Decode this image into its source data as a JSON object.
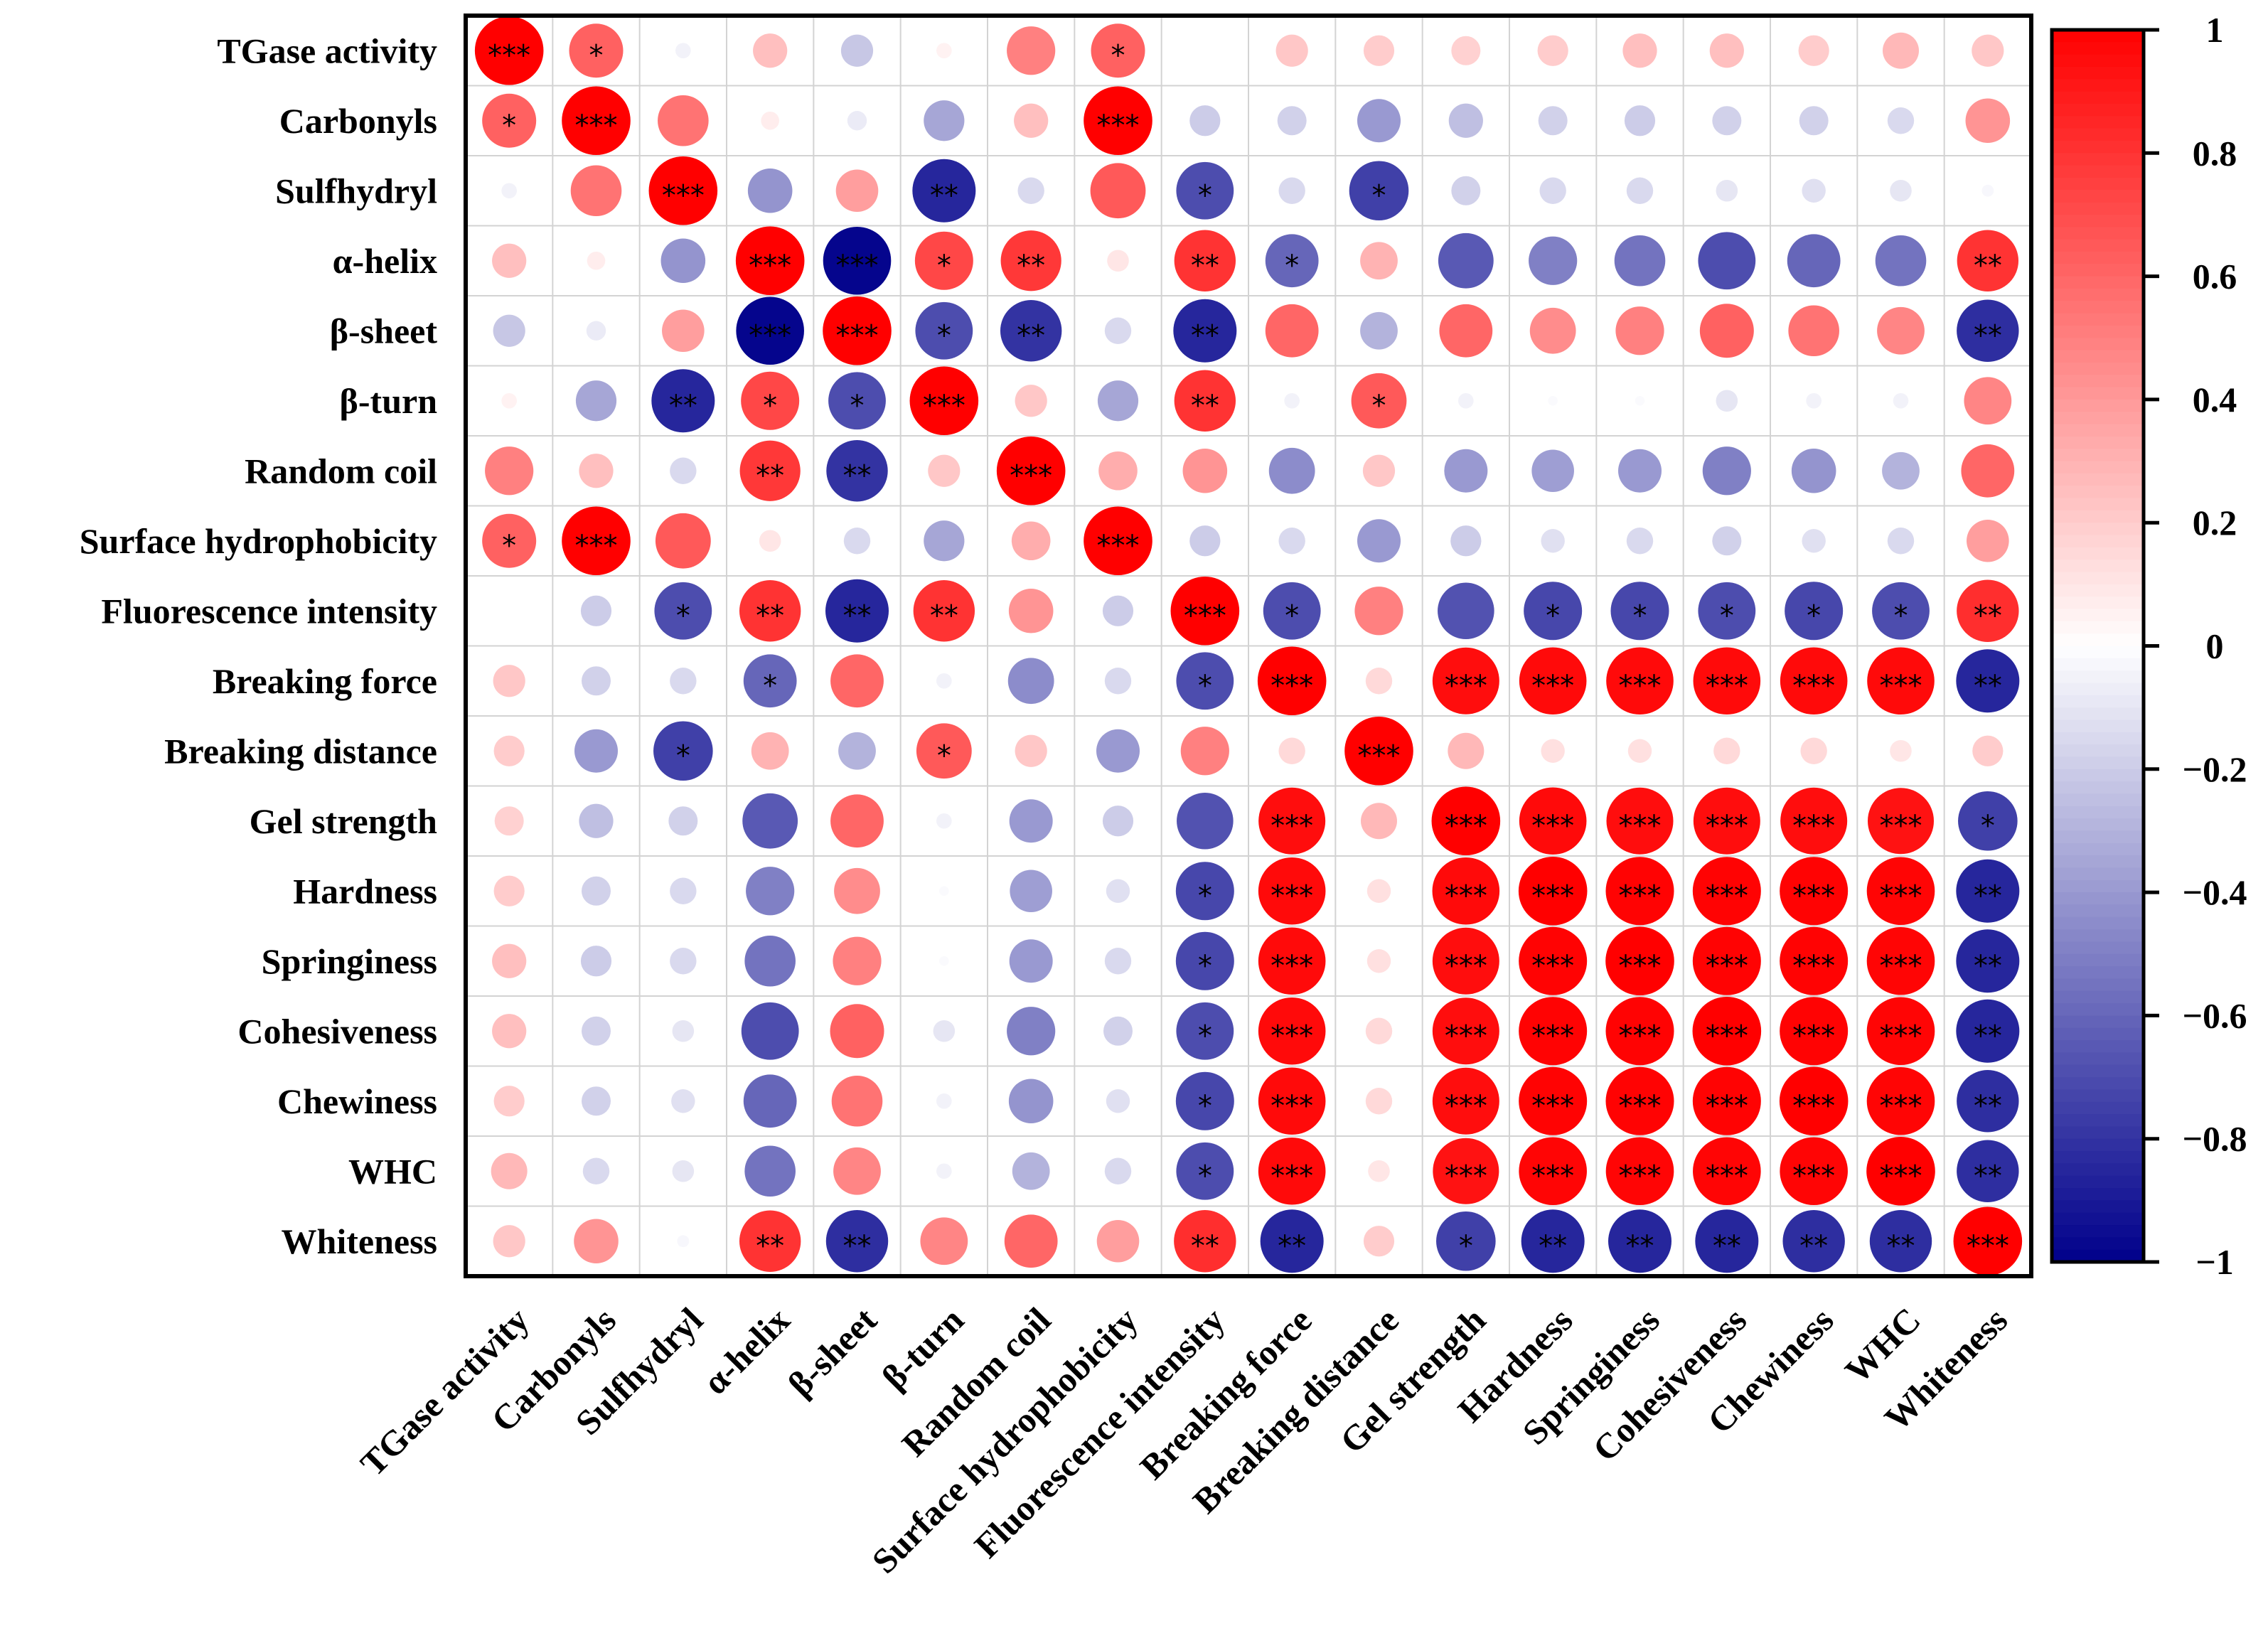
{
  "chart_data": {
    "type": "heatmap",
    "subtype": "correlation-circle-matrix",
    "title": "",
    "variables": [
      "TGase activity",
      "Carbonyls",
      "Sulfhydryl",
      "α-helix",
      "β-sheet",
      "β-turn",
      "Random coil",
      "Surface hydrophobicity",
      "Fluorescence intensity",
      "Breaking force",
      "Breaking distance",
      "Gel strength",
      "Hardness",
      "Springiness",
      "Cohesiveness",
      "Chewiness",
      "WHC",
      "Whiteness"
    ],
    "matrix": [
      [
        1.0,
        0.62,
        -0.05,
        0.25,
        -0.22,
        0.05,
        0.5,
        0.62,
        0.0,
        0.22,
        0.2,
        0.18,
        0.2,
        0.25,
        0.25,
        0.2,
        0.28,
        0.22
      ],
      [
        0.62,
        1.0,
        0.55,
        0.07,
        -0.08,
        -0.35,
        0.25,
        1.0,
        -0.2,
        -0.18,
        -0.4,
        -0.25,
        -0.18,
        -0.2,
        -0.18,
        -0.18,
        -0.15,
        0.42
      ],
      [
        -0.05,
        0.55,
        1.0,
        -0.42,
        0.38,
        -0.85,
        -0.15,
        0.65,
        -0.7,
        -0.15,
        -0.75,
        -0.18,
        -0.15,
        -0.15,
        -0.1,
        -0.12,
        -0.1,
        -0.03
      ],
      [
        0.25,
        0.07,
        -0.42,
        1.0,
        -0.98,
        0.72,
        0.78,
        0.1,
        0.8,
        -0.6,
        0.3,
        -0.65,
        -0.5,
        -0.55,
        -0.7,
        -0.6,
        -0.55,
        0.8
      ],
      [
        -0.22,
        -0.08,
        0.38,
        -0.98,
        1.0,
        -0.7,
        -0.8,
        -0.15,
        -0.85,
        0.6,
        -0.3,
        0.6,
        0.45,
        0.5,
        0.62,
        0.55,
        0.48,
        -0.82
      ],
      [
        0.05,
        -0.35,
        -0.85,
        0.72,
        -0.7,
        1.0,
        0.22,
        -0.35,
        0.8,
        -0.05,
        0.65,
        -0.05,
        -0.02,
        -0.02,
        -0.1,
        -0.05,
        -0.05,
        0.48
      ],
      [
        0.5,
        0.25,
        -0.15,
        0.78,
        -0.8,
        0.22,
        1.0,
        0.32,
        0.42,
        -0.45,
        0.22,
        -0.4,
        -0.38,
        -0.4,
        -0.5,
        -0.42,
        -0.3,
        0.6
      ],
      [
        0.62,
        1.0,
        0.65,
        0.1,
        -0.15,
        -0.35,
        0.32,
        1.0,
        -0.2,
        -0.15,
        -0.4,
        -0.2,
        -0.12,
        -0.15,
        -0.18,
        -0.12,
        -0.15,
        0.38
      ],
      [
        0.0,
        -0.2,
        -0.7,
        0.8,
        -0.85,
        0.8,
        0.42,
        -0.2,
        1.0,
        -0.7,
        0.5,
        -0.68,
        -0.72,
        -0.72,
        -0.7,
        -0.72,
        -0.7,
        0.82
      ],
      [
        0.22,
        -0.18,
        -0.15,
        -0.6,
        0.6,
        -0.05,
        -0.45,
        -0.15,
        -0.7,
        1.0,
        0.15,
        0.95,
        0.96,
        0.96,
        0.96,
        0.96,
        0.96,
        -0.85
      ],
      [
        0.2,
        -0.4,
        -0.75,
        0.3,
        -0.3,
        0.65,
        0.22,
        -0.4,
        0.5,
        0.15,
        1.0,
        0.28,
        0.12,
        0.12,
        0.15,
        0.15,
        0.1,
        0.2
      ],
      [
        0.18,
        -0.25,
        -0.18,
        -0.65,
        0.6,
        -0.05,
        -0.4,
        -0.2,
        -0.68,
        0.95,
        0.28,
        1.0,
        0.96,
        0.95,
        0.95,
        0.95,
        0.93,
        -0.75
      ],
      [
        0.2,
        -0.18,
        -0.15,
        -0.5,
        0.45,
        -0.02,
        -0.38,
        -0.12,
        -0.72,
        0.96,
        0.12,
        0.96,
        1.0,
        0.99,
        0.99,
        0.99,
        0.98,
        -0.85
      ],
      [
        0.25,
        -0.2,
        -0.15,
        -0.55,
        0.5,
        -0.02,
        -0.4,
        -0.15,
        -0.72,
        0.96,
        0.12,
        0.95,
        0.99,
        1.0,
        0.99,
        0.99,
        0.98,
        -0.85
      ],
      [
        0.25,
        -0.18,
        -0.1,
        -0.7,
        0.62,
        -0.1,
        -0.5,
        -0.18,
        -0.7,
        0.96,
        0.15,
        0.95,
        0.99,
        0.99,
        1.0,
        0.99,
        0.98,
        -0.85
      ],
      [
        0.2,
        -0.18,
        -0.12,
        -0.6,
        0.55,
        -0.05,
        -0.42,
        -0.12,
        -0.72,
        0.96,
        0.15,
        0.95,
        0.99,
        0.99,
        0.99,
        1.0,
        0.98,
        -0.82
      ],
      [
        0.28,
        -0.15,
        -0.1,
        -0.55,
        0.48,
        -0.05,
        -0.3,
        -0.15,
        -0.7,
        0.96,
        0.1,
        0.93,
        0.98,
        0.98,
        0.98,
        0.98,
        1.0,
        -0.82
      ],
      [
        0.22,
        0.42,
        -0.03,
        0.8,
        -0.82,
        0.48,
        0.6,
        0.38,
        0.82,
        -0.85,
        0.2,
        -0.75,
        -0.85,
        -0.85,
        -0.85,
        -0.82,
        -0.82,
        1.0
      ]
    ],
    "significance": [
      [
        "***",
        "*",
        "",
        "",
        "",
        "",
        "",
        "*",
        "",
        "",
        "",
        "",
        "",
        "",
        "",
        "",
        "",
        ""
      ],
      [
        "*",
        "***",
        "",
        "",
        "",
        "",
        "",
        "***",
        "",
        "",
        "",
        "",
        "",
        "",
        "",
        "",
        "",
        ""
      ],
      [
        "",
        "",
        "***",
        "",
        "",
        "**",
        "",
        "",
        "*",
        "",
        "*",
        "",
        "",
        "",
        "",
        "",
        "",
        ""
      ],
      [
        "",
        "",
        "",
        "***",
        "***",
        "*",
        "**",
        "",
        "**",
        "*",
        "",
        "",
        "",
        "",
        "",
        "",
        "",
        "**"
      ],
      [
        "",
        "",
        "",
        "***",
        "***",
        "*",
        "**",
        "",
        "**",
        "",
        "",
        "",
        "",
        "",
        "",
        "",
        "",
        "**"
      ],
      [
        "",
        "",
        "**",
        "*",
        "*",
        "***",
        "",
        "",
        "**",
        "",
        "*",
        "",
        "",
        "",
        "",
        "",
        "",
        ""
      ],
      [
        "",
        "",
        "",
        "**",
        "**",
        "",
        "***",
        "",
        "",
        "",
        "",
        "",
        "",
        "",
        "",
        "",
        "",
        ""
      ],
      [
        "*",
        "***",
        "",
        "",
        "",
        "",
        "",
        "***",
        "",
        "",
        "",
        "",
        "",
        "",
        "",
        "",
        "",
        ""
      ],
      [
        "",
        "",
        "*",
        "**",
        "**",
        "**",
        "",
        "",
        "***",
        "*",
        "",
        "",
        "*",
        "*",
        "*",
        "*",
        "*",
        "**"
      ],
      [
        "",
        "",
        "",
        "*",
        "",
        "",
        "",
        "",
        "*",
        "***",
        "",
        "***",
        "***",
        "***",
        "***",
        "***",
        "***",
        "**"
      ],
      [
        "",
        "",
        "*",
        "",
        "",
        "*",
        "",
        "",
        "",
        "",
        "***",
        "",
        "",
        "",
        "",
        "",
        "",
        ""
      ],
      [
        "",
        "",
        "",
        "",
        "",
        "",
        "",
        "",
        "",
        "***",
        "",
        "***",
        "***",
        "***",
        "***",
        "***",
        "***",
        "*"
      ],
      [
        "",
        "",
        "",
        "",
        "",
        "",
        "",
        "",
        "*",
        "***",
        "",
        "***",
        "***",
        "***",
        "***",
        "***",
        "***",
        "**"
      ],
      [
        "",
        "",
        "",
        "",
        "",
        "",
        "",
        "",
        "*",
        "***",
        "",
        "***",
        "***",
        "***",
        "***",
        "***",
        "***",
        "**"
      ],
      [
        "",
        "",
        "",
        "",
        "",
        "",
        "",
        "",
        "*",
        "***",
        "",
        "***",
        "***",
        "***",
        "***",
        "***",
        "***",
        "**"
      ],
      [
        "",
        "",
        "",
        "",
        "",
        "",
        "",
        "",
        "*",
        "***",
        "",
        "***",
        "***",
        "***",
        "***",
        "***",
        "***",
        "**"
      ],
      [
        "",
        "",
        "",
        "",
        "",
        "",
        "",
        "",
        "*",
        "***",
        "",
        "***",
        "***",
        "***",
        "***",
        "***",
        "***",
        "**"
      ],
      [
        "",
        "",
        "",
        "**",
        "**",
        "",
        "",
        "",
        "**",
        "**",
        "",
        "*",
        "**",
        "**",
        "**",
        "**",
        "**",
        "***"
      ]
    ],
    "colorbar": {
      "min": -1,
      "max": 1,
      "ticks": [
        1,
        0.8,
        0.6,
        0.4,
        0.2,
        0,
        -0.2,
        -0.4,
        -0.6,
        -0.8,
        -1
      ],
      "tick_labels": [
        "1",
        "0.8",
        "0.6",
        "0.4",
        "0.2",
        "0",
        "−0.2",
        "−0.4",
        "−0.6",
        "−0.8",
        "−1"
      ],
      "colors": {
        "negative": "#00008b",
        "mid": "#ffffff",
        "positive": "#ff0000"
      }
    },
    "grid": true,
    "legend": "right"
  }
}
